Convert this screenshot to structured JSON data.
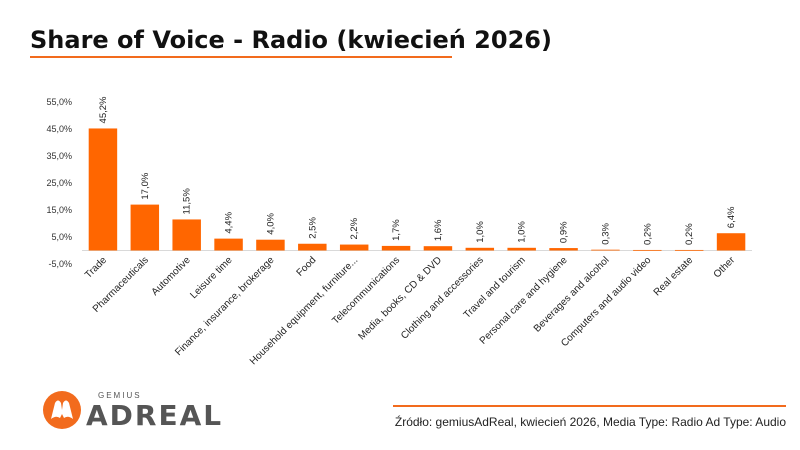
{
  "title": "Share of Voice - Radio (kwiecień 2026)",
  "source": "Źródło: gemiusAdReal, kwiecień 2026, Media Type: Radio Ad Type: Audio",
  "logo": {
    "brand_small": "GEMIUS",
    "brand_main": "ADREAL",
    "icon": "gemius-adreal-logo-icon"
  },
  "colors": {
    "accent": "#F26B1D",
    "bar": "#FF6600"
  },
  "chart_data": {
    "type": "bar",
    "categories": [
      "Trade",
      "Pharmaceuticals",
      "Automotive",
      "Leisure time",
      "Finance, insurance, brokerage",
      "Food",
      "Household equipment, furniture...",
      "Telecommunications",
      "Media, books, CD & DVD",
      "Clothing and accessories",
      "Travel and tourism",
      "Personal care and hygiene",
      "Beverages and alcohol",
      "Computers and audio video",
      "Real estate",
      "Other"
    ],
    "values": [
      45.2,
      17.0,
      11.5,
      4.4,
      4.0,
      2.5,
      2.2,
      1.7,
      1.6,
      1.0,
      1.0,
      0.9,
      0.3,
      0.2,
      0.2,
      6.4
    ],
    "value_labels": [
      "45,2%",
      "17,0%",
      "11,5%",
      "4,4%",
      "4,0%",
      "2,5%",
      "2,2%",
      "1,7%",
      "1,6%",
      "1,0%",
      "1,0%",
      "0,9%",
      "0,3%",
      "0,2%",
      "0,2%",
      "6,4%"
    ],
    "yticks": [
      -5,
      5,
      15,
      25,
      35,
      45,
      55
    ],
    "ytick_labels": [
      "-5,0%",
      "5,0%",
      "15,0%",
      "25,0%",
      "35,0%",
      "45,0%",
      "55,0%"
    ],
    "ylim": [
      -5,
      55
    ],
    "grid": false,
    "legend": "none"
  }
}
